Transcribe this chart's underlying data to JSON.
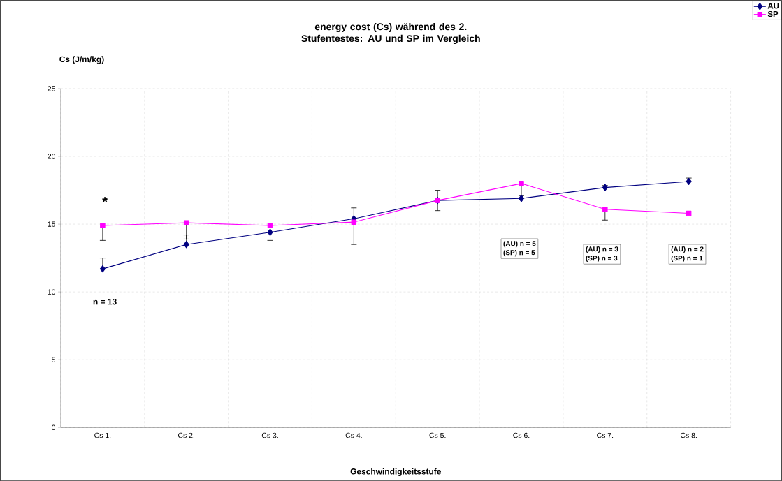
{
  "chart_data": {
    "type": "line",
    "title": "energy cost (Cs) während des 2. Stufentestes: AU und SP im Vergleich",
    "xlabel": "Geschwindigkeitsstufe",
    "ylabel": "Cs (J/m/kg)",
    "categories": [
      "Cs 1.",
      "Cs 2.",
      "Cs 3.",
      "Cs 4.",
      "Cs 5.",
      "Cs 6.",
      "Cs 7.",
      "Cs 8."
    ],
    "series": [
      {
        "name": "AU",
        "color": "#000080",
        "marker": "diamond",
        "values": [
          11.7,
          13.5,
          14.4,
          15.4,
          16.75,
          16.9,
          17.7,
          18.15
        ],
        "errors": [
          [
            11.7,
            12.5
          ],
          [
            13.5,
            14.2
          ],
          [
            13.8,
            14.4
          ],
          [
            15.4,
            16.2
          ],
          [
            16.75,
            17.5
          ],
          null,
          [
            17.7,
            17.85
          ],
          [
            18.15,
            18.4
          ]
        ]
      },
      {
        "name": "SP",
        "color": "#ff00ff",
        "marker": "square",
        "values": [
          14.9,
          15.1,
          14.9,
          15.15,
          16.75,
          18.0,
          16.1,
          15.8
        ],
        "errors": [
          [
            13.8,
            14.9
          ],
          [
            13.9,
            15.1
          ],
          null,
          [
            13.5,
            15.15
          ],
          [
            16.0,
            16.75
          ],
          [
            17.1,
            18.0
          ],
          [
            15.3,
            16.1
          ],
          null
        ]
      }
    ],
    "ylim": [
      0,
      25
    ],
    "yticks": [
      0,
      5,
      10,
      15,
      20,
      25
    ],
    "grid": true,
    "legend": "top right",
    "line_style": "solid",
    "annotations": [
      "*",
      "n = 13",
      "(AU) n = 5",
      "(SP) n = 5",
      "(AU) n = 3",
      "(SP) n = 3",
      "(AU) n = 2",
      "(SP) n = 1"
    ]
  }
}
